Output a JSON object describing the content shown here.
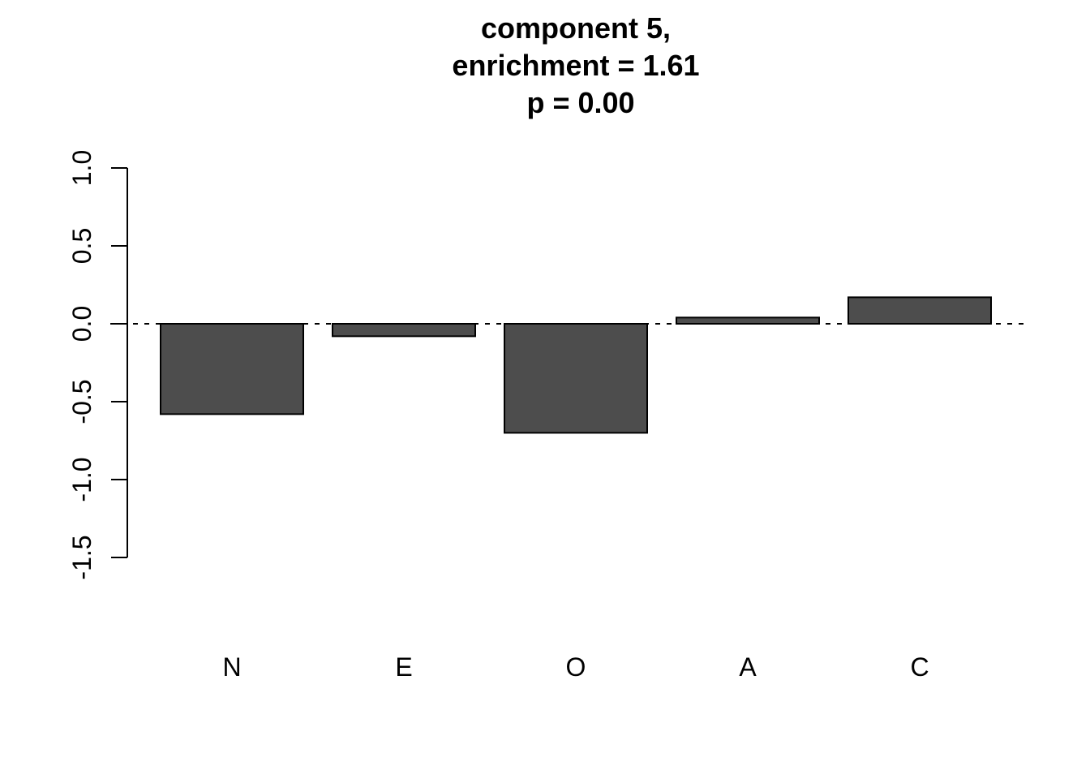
{
  "chart_data": {
    "type": "bar",
    "title_lines": [
      "component 5,",
      "enrichment = 1.61",
      "p = 0.00"
    ],
    "categories": [
      "N",
      "E",
      "O",
      "A",
      "C"
    ],
    "values": [
      -0.58,
      -0.08,
      -0.7,
      0.04,
      0.17
    ],
    "xlabel": "",
    "ylabel": "",
    "ylim": [
      -1.5,
      1.0
    ],
    "yticks": [
      -1.5,
      -1.0,
      -0.5,
      0.0,
      0.5,
      1.0
    ],
    "ytick_labels": [
      "-1.5",
      "-1.0",
      "-0.5",
      "0.0",
      "0.5",
      "1.0"
    ],
    "reference_line": 0,
    "reference_line_style": "dashed",
    "grid": false,
    "legend": "none",
    "bar_color": "#4d4d4d",
    "bar_border_color": "#000000"
  }
}
